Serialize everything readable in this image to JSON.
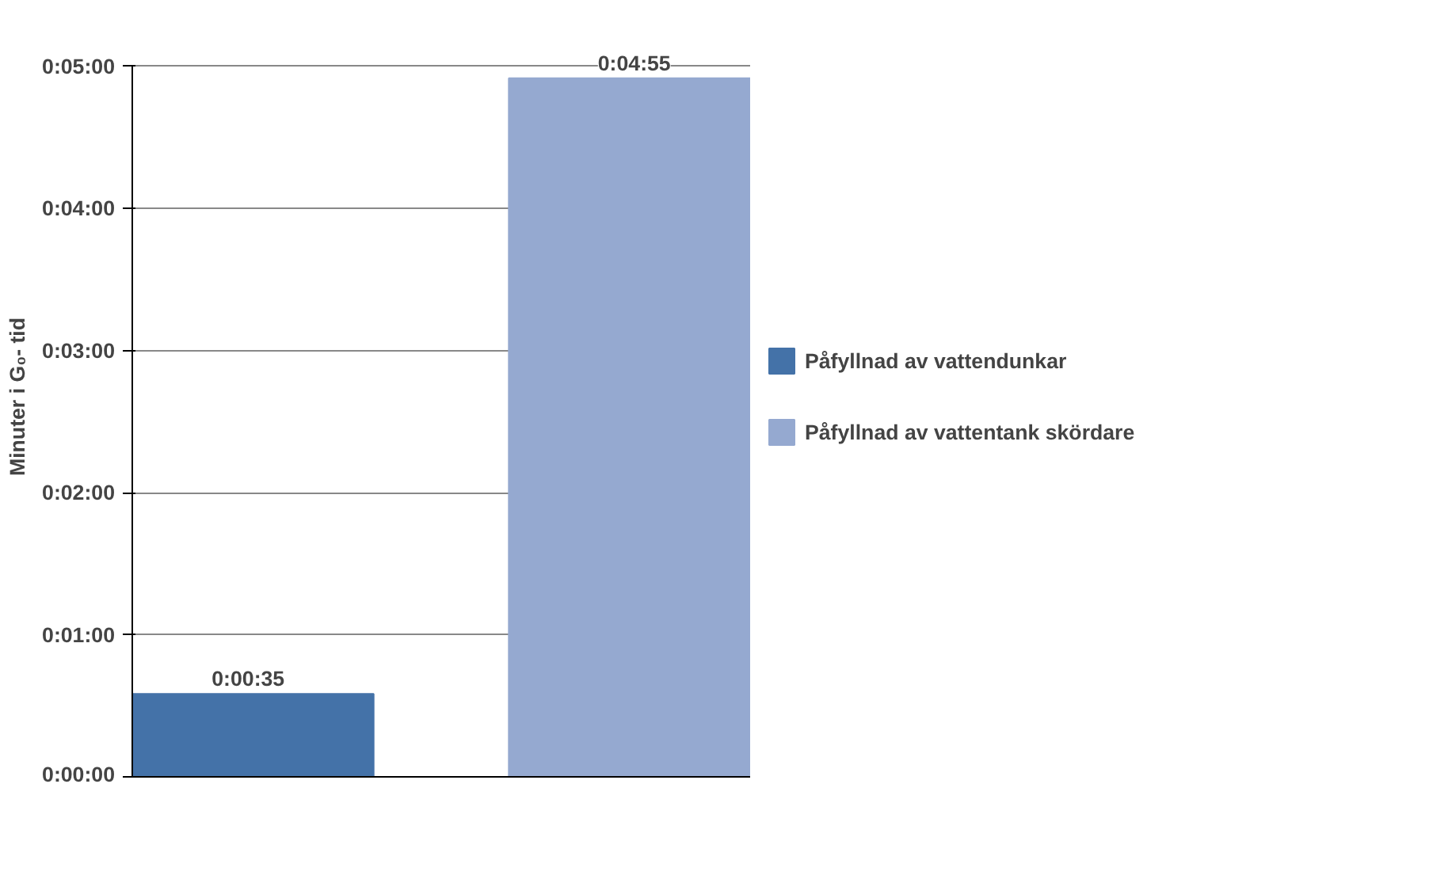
{
  "chart_data": {
    "type": "bar",
    "ylabel": "Minuter i G₀- tid",
    "categories": [
      null,
      null
    ],
    "series": [
      {
        "name": "Påfyllnad av vattendunkar",
        "color": "#4472a8",
        "values": [
          35,
          null
        ],
        "value_labels": [
          "0:00:35",
          null
        ]
      },
      {
        "name": "Påfyllnad av vattentank skördare",
        "color": "#95a9d0",
        "values": [
          null,
          295
        ],
        "value_labels": [
          null,
          "0:04:55"
        ]
      }
    ],
    "ylim": [
      0,
      300
    ],
    "yticks": [
      {
        "value": 0,
        "label": "0:00:00"
      },
      {
        "value": 60,
        "label": "0:01:00"
      },
      {
        "value": 120,
        "label": "0:02:00"
      },
      {
        "value": 180,
        "label": "0:03:00"
      },
      {
        "value": 240,
        "label": "0:04:00"
      },
      {
        "value": 300,
        "label": "0:05:00"
      }
    ],
    "grid": "y",
    "legend": "right"
  }
}
